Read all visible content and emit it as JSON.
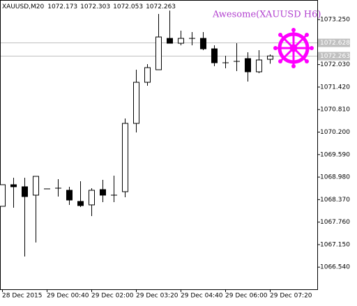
{
  "chart_data": {
    "type": "candlestick",
    "symbol": "XAUUSD,M20",
    "indicator_label": "Awesome(XAUUSD H6)",
    "indicator_color": "#b13fcf",
    "up_color": "#ffffff",
    "down_color": "#000000",
    "categories": [
      "28 Dec 2015",
      null,
      null,
      null,
      "29 Dec 00:40",
      null,
      null,
      null,
      "29 Dec 02:00",
      null,
      null,
      null,
      "29 Dec 03:20",
      null,
      null,
      null,
      "29 Dec 04:40",
      null,
      null,
      null,
      "29 Dec 06:00",
      null,
      null,
      null,
      "29 Dec 07:20"
    ],
    "open": [
      1068.189,
      1068.774,
      1068.718,
      1068.491,
      1068.661,
      1068.68,
      1068.623,
      1068.321,
      1068.227,
      1068.642,
      1068.491,
      1068.585,
      1070.436,
      1071.55,
      1071.89,
      1072.74,
      1072.608,
      1072.74,
      1072.74,
      1072.457,
      1072.079,
      1072.117,
      1072.192,
      1071.834,
      1072.173
    ],
    "high": [
      1068.774,
      1068.963,
      1068.963,
      1069.001,
      1068.661,
      1068.925,
      1068.718,
      1068.869,
      1068.68,
      1068.907,
      1069.02,
      1070.568,
      1071.89,
      1072.041,
      1073.401,
      1073.495,
      1072.948,
      1072.91,
      1072.91,
      1072.551,
      1072.268,
      1072.608,
      1072.362,
      1072.419,
      1072.303
    ],
    "low": [
      1068.189,
      1068.151,
      1066.829,
      1067.207,
      1068.661,
      1068.453,
      1068.227,
      1068.17,
      1067.924,
      1068.302,
      1068.302,
      1068.434,
      1070.191,
      1071.456,
      1071.89,
      1072.608,
      1072.551,
      1072.551,
      1072.419,
      1071.985,
      1071.928,
      1071.853,
      1071.569,
      1071.796,
      1072.053
    ],
    "close": [
      1068.774,
      1068.718,
      1068.453,
      1069.001,
      1068.661,
      1068.68,
      1068.359,
      1068.208,
      1068.623,
      1068.491,
      1068.491,
      1070.436,
      1071.55,
      1071.947,
      1072.778,
      1072.608,
      1072.74,
      1072.74,
      1072.457,
      1072.079,
      1072.079,
      1072.117,
      1071.834,
      1072.155,
      1072.263
    ],
    "ylim": [
      1065.94,
      1073.78
    ],
    "yticks": [
      {
        "value": 1073.25,
        "label": "1073.250"
      },
      {
        "value": 1072.03,
        "label": "1072.030"
      },
      {
        "value": 1071.42,
        "label": "1071.420"
      },
      {
        "value": 1070.81,
        "label": "1070.810"
      },
      {
        "value": 1070.2,
        "label": "1070.200"
      },
      {
        "value": 1069.59,
        "label": "1069.590"
      },
      {
        "value": 1068.98,
        "label": "1068.980"
      },
      {
        "value": 1068.37,
        "label": "1068.370"
      },
      {
        "value": 1067.76,
        "label": "1067.760"
      },
      {
        "value": 1067.15,
        "label": "1067.150"
      },
      {
        "value": 1066.54,
        "label": "1066.540"
      }
    ],
    "price_lines": [
      1072.628,
      1072.263
    ]
  }
}
